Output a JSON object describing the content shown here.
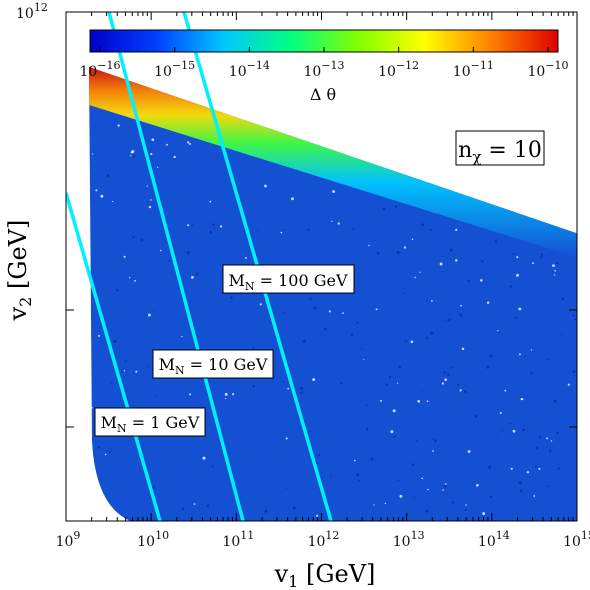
{
  "chart_data": {
    "type": "scatter",
    "title": "",
    "xlabel": {
      "base": "v",
      "sub": "1",
      "rest": " [GeV]"
    },
    "ylabel": {
      "base": "v",
      "sub": "2",
      "rest": " [GeV]"
    },
    "xscale": "log",
    "yscale": "log",
    "xlim": [
      1000000000.0,
      1000000000000000.0
    ],
    "ylim_top": 1000000000000.0,
    "x_ticks": [
      {
        "base": "10",
        "exp": "9"
      },
      {
        "base": "10",
        "exp": "10"
      },
      {
        "base": "10",
        "exp": "11"
      },
      {
        "base": "10",
        "exp": "12"
      },
      {
        "base": "10",
        "exp": "13"
      },
      {
        "base": "10",
        "exp": "14"
      },
      {
        "base": "10",
        "exp": "15"
      }
    ],
    "y_ticks": [
      {
        "base": "10",
        "exp": "12"
      }
    ],
    "colorbar": {
      "label": "Δ θ",
      "scale": "log",
      "range": [
        1e-16,
        1e-10
      ],
      "ticks": [
        {
          "base": "10",
          "exp": "−16"
        },
        {
          "base": "10",
          "exp": "−15"
        },
        {
          "base": "10",
          "exp": "−14"
        },
        {
          "base": "10",
          "exp": "−13"
        },
        {
          "base": "10",
          "exp": "−12"
        },
        {
          "base": "10",
          "exp": "−11"
        },
        {
          "base": "10",
          "exp": "−10"
        }
      ],
      "colormap": [
        "#0000c8",
        "#0040ff",
        "#00c8ff",
        "#00ff80",
        "#80ff00",
        "#ffff00",
        "#ff8000",
        "#e00000"
      ]
    },
    "scatter_color": "#1450d2",
    "annotation_box": {
      "base": "n",
      "sub": "χ",
      "rest": " = 10"
    },
    "lines": [
      {
        "label_base": "M",
        "label_sub": "N",
        "label_rest": " = 1 GeV",
        "color": "#00f0ff"
      },
      {
        "label_base": "M",
        "label_sub": "N",
        "label_rest": " = 10 GeV",
        "color": "#00f0ff"
      },
      {
        "label_base": "M",
        "label_sub": "N",
        "label_rest": " = 100 GeV",
        "color": "#00f0ff"
      }
    ]
  }
}
